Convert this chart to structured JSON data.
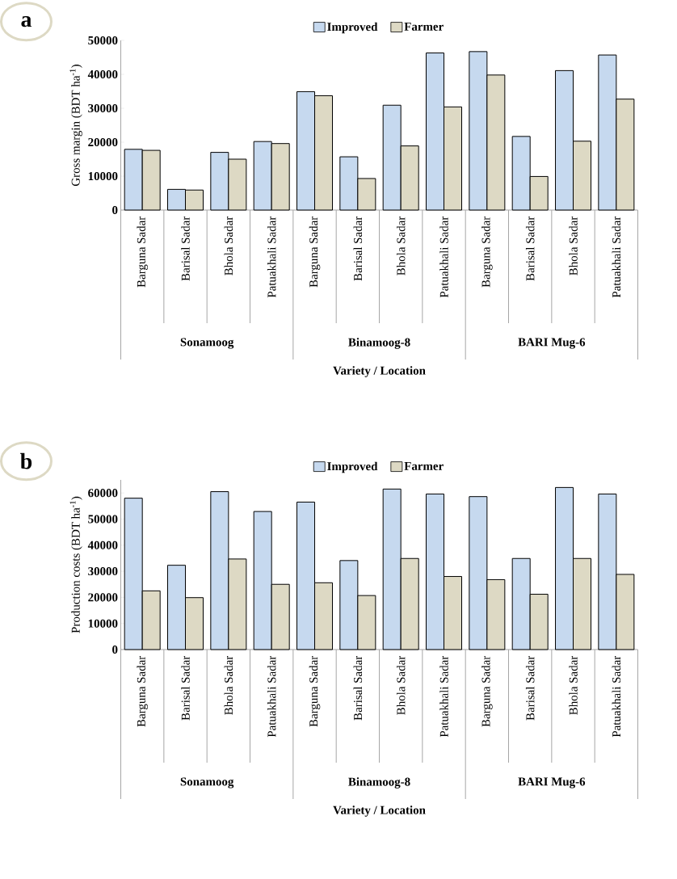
{
  "chart_data": [
    {
      "type": "bar",
      "title": "a",
      "ylabel": "Gross margin (BDT ha$^{-1}$)",
      "xlabel": "Variety / Location",
      "categories": [
        "Barguna Sadar",
        "Barisal Sadar",
        "Bhola Sadar",
        "Patuakhali Sadar",
        "Barguna Sadar",
        "Barisal Sadar",
        "Bhola Sadar",
        "Patuakhali Sadar",
        "Barguna Sadar",
        "Barisal Sadar",
        "Bhola Sadar",
        "Patuakhali Sadar"
      ],
      "annotations": [
        "Sonamoog",
        "Binamoog-8",
        "BARI Mug-6"
      ],
      "series": [
        {
          "name": "Improved",
          "color": "#c6d9ef",
          "values": [
            17900,
            6100,
            17000,
            20200,
            34900,
            15700,
            30900,
            46300,
            46700,
            21700,
            41100,
            45700
          ]
        },
        {
          "name": "Farmer",
          "color": "#ddd9c4",
          "values": [
            17600,
            5900,
            15000,
            19600,
            33700,
            9300,
            18900,
            30400,
            39800,
            9900,
            20300,
            32700
          ]
        }
      ],
      "ylim": [
        0,
        50000
      ],
      "yticks": [
        0,
        10000,
        20000,
        30000,
        40000,
        50000
      ],
      "legend": "top"
    },
    {
      "type": "bar",
      "title": "b",
      "ylabel": "Production costs (BDT ha$^{-1}$)",
      "xlabel": "Variety / Location",
      "categories": [
        "Barguna Sadar",
        "Barisal Sadar",
        "Bhola Sadar",
        "Patuakhali Sadar",
        "Barguna Sadar",
        "Barisal Sadar",
        "Bhola Sadar",
        "Patuakhali Sadar",
        "Barguna Sadar",
        "Barisal Sadar",
        "Bhola Sadar",
        "Patuakhali Sadar"
      ],
      "annotations": [
        "Sonamoog",
        "Binamoog-8",
        "BARI Mug-6"
      ],
      "series": [
        {
          "name": "Improved",
          "color": "#c6d9ef",
          "values": [
            58000,
            32300,
            60500,
            52900,
            56500,
            34100,
            61500,
            59600,
            58600,
            34900,
            62100,
            59600
          ]
        },
        {
          "name": "Farmer",
          "color": "#ddd9c4",
          "values": [
            22500,
            19900,
            34700,
            25000,
            25600,
            20700,
            34900,
            28000,
            26800,
            21200,
            34900,
            28800
          ]
        }
      ],
      "ylim": [
        0,
        65000
      ],
      "yticks": [
        0,
        10000,
        20000,
        30000,
        40000,
        50000,
        60000
      ],
      "legend": "top"
    }
  ]
}
